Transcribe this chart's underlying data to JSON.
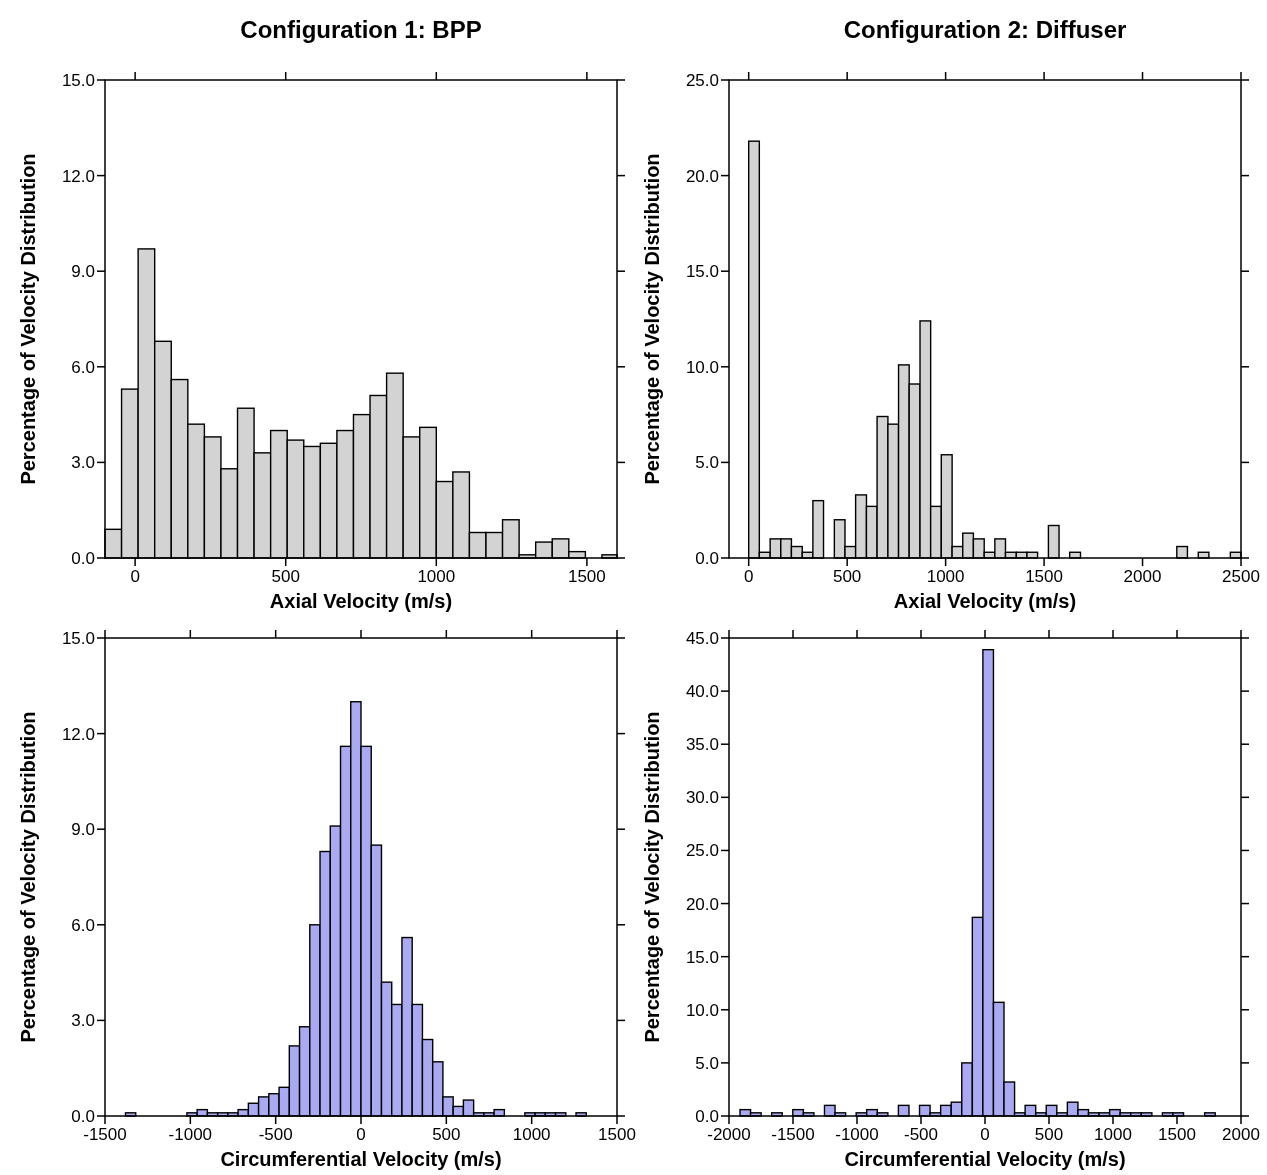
{
  "chart_data": [
    {
      "type": "histogram",
      "title": "Configuration 1: BPP",
      "xlabel": "Axial Velocity (m/s)",
      "ylabel": "Percentage of Velocity Distribution",
      "color": "#d3d3d3",
      "bins": [
        -100,
        -45,
        10,
        65,
        120,
        175,
        230,
        285,
        340,
        395,
        450,
        505,
        560,
        615,
        670,
        725,
        780,
        835,
        890,
        945,
        1000,
        1055,
        1110,
        1165,
        1220,
        1275,
        1330,
        1385,
        1440,
        1495,
        1550,
        1600
      ],
      "values": [
        0.9,
        5.3,
        9.7,
        6.8,
        5.6,
        4.2,
        3.8,
        2.8,
        4.7,
        3.3,
        4.0,
        3.7,
        3.5,
        3.6,
        4.0,
        4.5,
        5.1,
        5.8,
        3.8,
        4.1,
        2.4,
        2.7,
        0.8,
        0.8,
        1.2,
        0.1,
        0.5,
        0.6,
        0.2,
        0,
        0.1
      ],
      "xlim": [
        -100,
        1600
      ],
      "xticks": [
        0,
        500,
        1000,
        1500
      ],
      "ylim": [
        0,
        15
      ],
      "yticks": [
        {
          "value": 0,
          "label": "0.0"
        },
        {
          "value": 3,
          "label": "3.0"
        },
        {
          "value": 6,
          "label": "6.0"
        },
        {
          "value": 9,
          "label": "9.0"
        },
        {
          "value": 12,
          "label": "12.0"
        },
        {
          "value": 15,
          "label": "15.0"
        }
      ]
    },
    {
      "type": "histogram",
      "title": "Configuration 2: Diffuser",
      "xlabel": "Axial Velocity (m/s)",
      "ylabel": "Percentage of Velocity Distribution",
      "color": "#d3d3d3",
      "bins": [
        0,
        54,
        109,
        163,
        217,
        272,
        326,
        380,
        435,
        489,
        543,
        598,
        652,
        707,
        761,
        815,
        870,
        924,
        978,
        1033,
        1087,
        1141,
        1196,
        1250,
        1304,
        1359,
        1413,
        1467,
        1522,
        1576,
        1630,
        1685,
        1739,
        1793,
        1848,
        1902,
        1957,
        2011,
        2065,
        2120,
        2174,
        2228,
        2283,
        2337,
        2391,
        2446,
        2500
      ],
      "values": [
        21.8,
        0.3,
        1.0,
        1.0,
        0.6,
        0.3,
        3.0,
        0,
        2.0,
        0.6,
        3.3,
        2.7,
        7.4,
        7.0,
        10.1,
        9.1,
        12.4,
        2.7,
        5.4,
        0.6,
        1.3,
        1.0,
        0.3,
        1.0,
        0.3,
        0.3,
        0.3,
        0,
        1.7,
        0,
        0.3,
        0,
        0,
        0,
        0,
        0,
        0,
        0,
        0,
        0,
        0.6,
        0,
        0.3,
        0,
        0,
        0.3
      ],
      "xlim": [
        -100,
        2500
      ],
      "xticks": [
        0,
        500,
        1000,
        1500,
        2000,
        2500
      ],
      "ylim": [
        0,
        25
      ],
      "yticks": [
        {
          "value": 0,
          "label": "0.0"
        },
        {
          "value": 5,
          "label": "5.0"
        },
        {
          "value": 10,
          "label": "10.0"
        },
        {
          "value": 15,
          "label": "15.0"
        },
        {
          "value": 20,
          "label": "20.0"
        },
        {
          "value": 25,
          "label": "25.0"
        }
      ]
    },
    {
      "type": "histogram",
      "xlabel": "Circumferential Velocity (m/s)",
      "ylabel": "Percentage of Velocity Distribution",
      "color": "#aaaaf2",
      "bins": [
        -1500,
        -1440,
        -1380,
        -1320,
        -1260,
        -1200,
        -1140,
        -1080,
        -1020,
        -960,
        -900,
        -840,
        -780,
        -720,
        -660,
        -600,
        -540,
        -480,
        -420,
        -360,
        -300,
        -240,
        -180,
        -120,
        -60,
        0,
        60,
        120,
        180,
        240,
        300,
        360,
        420,
        480,
        540,
        600,
        660,
        720,
        780,
        840,
        900,
        960,
        1020,
        1080,
        1140,
        1200,
        1260,
        1320,
        1380,
        1440,
        1500
      ],
      "values": [
        0,
        0,
        0.1,
        0,
        0,
        0,
        0,
        0,
        0.1,
        0.2,
        0.1,
        0.1,
        0.1,
        0.2,
        0.4,
        0.6,
        0.7,
        0.9,
        2.2,
        2.8,
        6.0,
        8.3,
        9.1,
        11.6,
        13.0,
        11.6,
        8.5,
        4.2,
        3.5,
        5.6,
        3.5,
        2.4,
        1.7,
        0.6,
        0.3,
        0.5,
        0.1,
        0.1,
        0.2,
        0,
        0,
        0.1,
        0.1,
        0.1,
        0.1,
        0,
        0.1,
        0,
        0,
        0
      ],
      "xlim": [
        -1500,
        1500
      ],
      "xticks": [
        -1500,
        -1000,
        -500,
        0,
        500,
        1000,
        1500
      ],
      "ylim": [
        0,
        15
      ],
      "yticks": [
        {
          "value": 0,
          "label": "0.0"
        },
        {
          "value": 3,
          "label": "3.0"
        },
        {
          "value": 6,
          "label": "6.0"
        },
        {
          "value": 9,
          "label": "9.0"
        },
        {
          "value": 12,
          "label": "12.0"
        },
        {
          "value": 15,
          "label": "15.0"
        }
      ]
    },
    {
      "type": "histogram",
      "xlabel": "Circumferential Velocity (m/s)",
      "ylabel": "Percentage of Velocity Distribution",
      "color": "#aaaaf2",
      "bins": [
        -1914,
        -1831.5,
        -1749,
        -1666.5,
        -1584,
        -1501.5,
        -1419,
        -1336.5,
        -1254,
        -1171.5,
        -1089,
        -1006.5,
        -924,
        -841.5,
        -759,
        -676.5,
        -594,
        -511.5,
        -429,
        -346.5,
        -264,
        -181.5,
        -99,
        -16.5,
        66,
        148.5,
        231,
        313.5,
        396,
        478.5,
        561,
        643.5,
        726,
        808.5,
        891,
        973.5,
        1056,
        1138.5,
        1221,
        1303.5,
        1386,
        1468.5,
        1551,
        1633.5,
        1716,
        1798.5
      ],
      "values": [
        0.6,
        0.3,
        0,
        0.3,
        0,
        0.6,
        0.3,
        0,
        1.0,
        0.3,
        0,
        0.3,
        0.6,
        0.3,
        0,
        1.0,
        0,
        1.0,
        0.3,
        1.0,
        1.3,
        5.0,
        18.7,
        43.9,
        10.7,
        3.2,
        0.3,
        1.0,
        0.3,
        1.0,
        0.3,
        1.3,
        0.6,
        0.3,
        0.3,
        0.6,
        0.3,
        0.3,
        0.3,
        0,
        0.3,
        0.3,
        0,
        0,
        0.3
      ],
      "xlim": [
        -2000,
        2000
      ],
      "xticks": [
        -2000,
        -1500,
        -1000,
        -500,
        0,
        500,
        1000,
        1500,
        2000
      ],
      "ylim": [
        0,
        45
      ],
      "yticks": [
        {
          "value": 0,
          "label": "0.0"
        },
        {
          "value": 5,
          "label": "5.0"
        },
        {
          "value": 10,
          "label": "10.0"
        },
        {
          "value": 15,
          "label": "15.0"
        },
        {
          "value": 20,
          "label": "20.0"
        },
        {
          "value": 25,
          "label": "25.0"
        },
        {
          "value": 30,
          "label": "30.0"
        },
        {
          "value": 35,
          "label": "35.0"
        },
        {
          "value": 40,
          "label": "40.0"
        },
        {
          "value": 45,
          "label": "45.0"
        }
      ]
    }
  ]
}
